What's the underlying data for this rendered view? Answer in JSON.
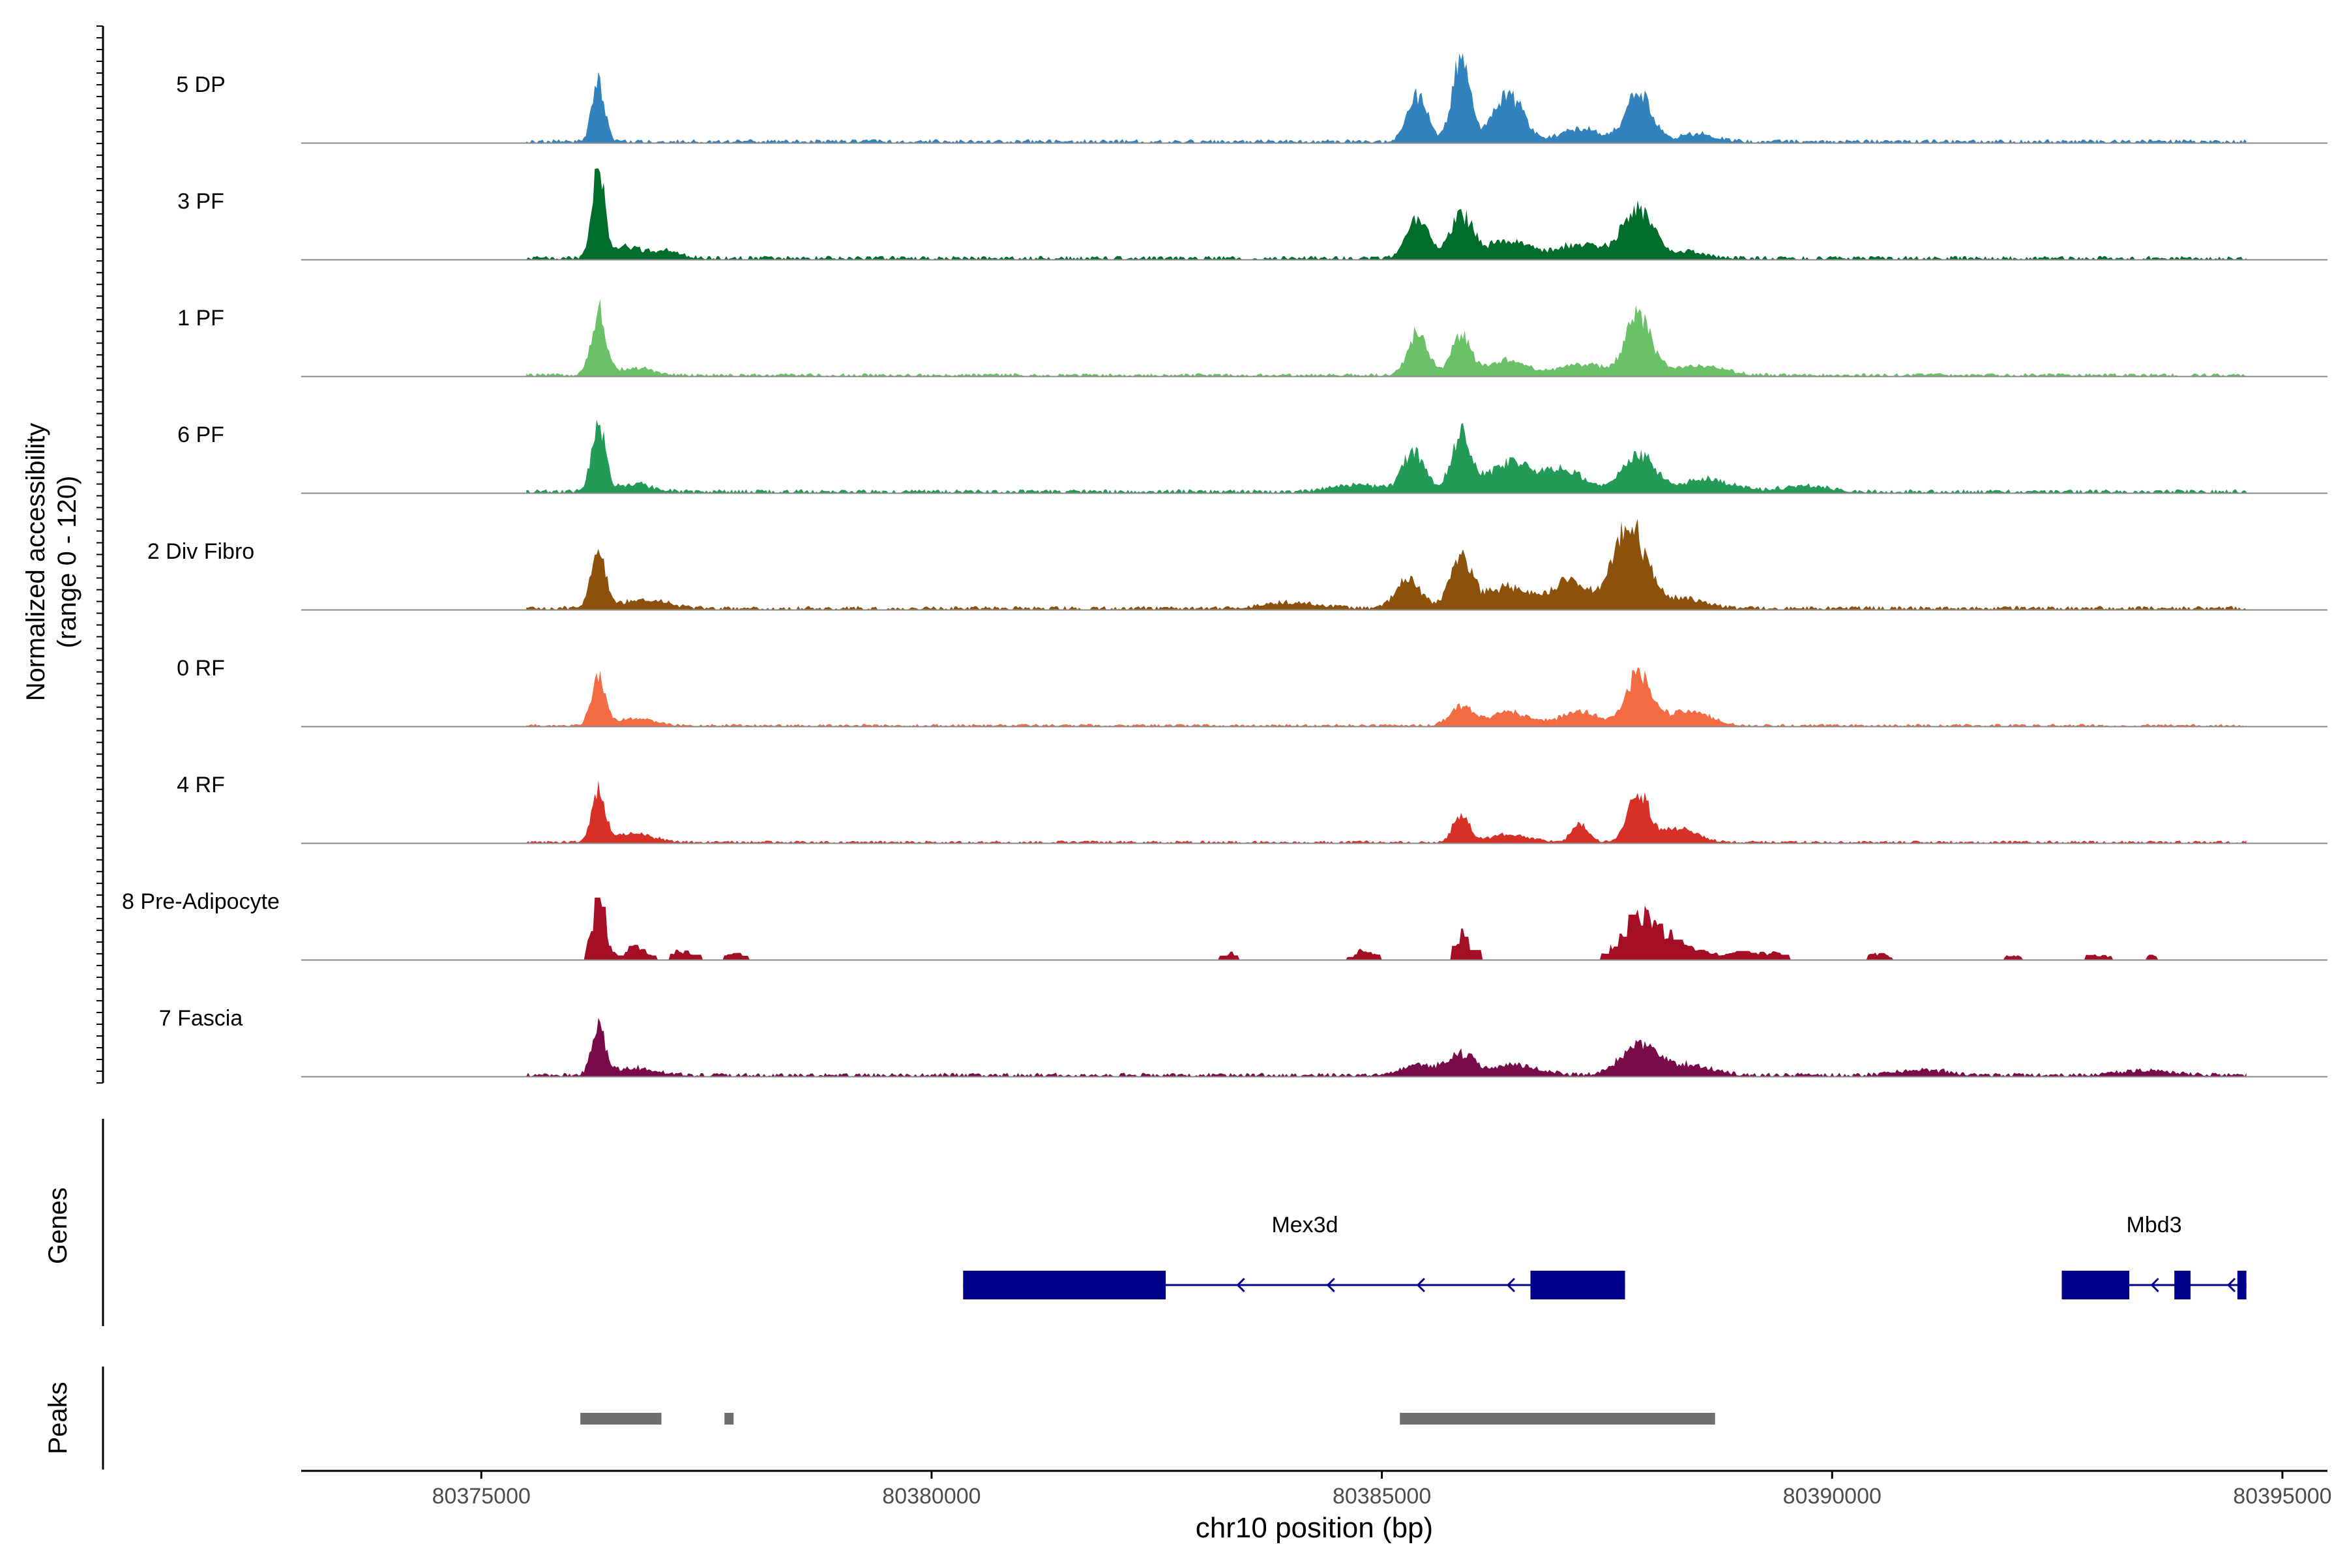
{
  "chart_data": {
    "type": "area",
    "title": "",
    "ylabel_line1": "Normalized accessibility",
    "ylabel_line2": "(range 0 - 120)",
    "ylim": [
      0,
      120
    ],
    "xlabel": "chr10 position (bp)",
    "xlim": [
      80373000,
      80395500
    ],
    "x_ticks": [
      80375000,
      80380000,
      80385000,
      80390000,
      80395000
    ],
    "x_tick_labels": [
      "80375000",
      "80380000",
      "80385000",
      "80390000",
      "80395000"
    ],
    "track_range": [
      80375500,
      80394600
    ],
    "tracks": [
      {
        "name": "5 DP",
        "color": "#3182BD",
        "baseline": 3.0,
        "peaks": [
          [
            80376300,
            80,
            70
          ],
          [
            80385400,
            64,
            110
          ],
          [
            80385880,
            120,
            95
          ],
          [
            80386400,
            62,
            170
          ],
          [
            80387200,
            18,
            200
          ],
          [
            80387850,
            70,
            140
          ],
          [
            80388500,
            10,
            200
          ]
        ]
      },
      {
        "name": "3 PF",
        "color": "#006D2C",
        "baseline": 3.0,
        "peaks": [
          [
            80376300,
            120,
            70
          ],
          [
            80376600,
            14,
            150
          ],
          [
            80377000,
            10,
            180
          ],
          [
            80385400,
            56,
            120
          ],
          [
            80385880,
            58,
            120
          ],
          [
            80386400,
            25,
            230
          ],
          [
            80387200,
            18,
            260
          ],
          [
            80387850,
            68,
            170
          ],
          [
            80388400,
            8,
            200
          ]
        ]
      },
      {
        "name": "1 PF",
        "color": "#6BC167",
        "baseline": 2.5,
        "peaks": [
          [
            80376300,
            85,
            80
          ],
          [
            80376700,
            10,
            200
          ],
          [
            80385400,
            58,
            110
          ],
          [
            80385880,
            55,
            110
          ],
          [
            80386400,
            20,
            200
          ],
          [
            80387200,
            15,
            260
          ],
          [
            80387850,
            80,
            140
          ],
          [
            80388500,
            14,
            280
          ]
        ]
      },
      {
        "name": "6 PF",
        "color": "#239B56",
        "baseline": 3.0,
        "peaks": [
          [
            80376300,
            88,
            75
          ],
          [
            80376700,
            10,
            200
          ],
          [
            80384700,
            10,
            250
          ],
          [
            80385350,
            55,
            120
          ],
          [
            80385880,
            75,
            110
          ],
          [
            80386400,
            38,
            220
          ],
          [
            80387000,
            30,
            240
          ],
          [
            80387850,
            50,
            170
          ],
          [
            80388600,
            16,
            300
          ],
          [
            80389700,
            8,
            250
          ]
        ]
      },
      {
        "name": "2 Div Fibro",
        "color": "#8C510A",
        "baseline": 3.0,
        "peaks": [
          [
            80376300,
            85,
            75
          ],
          [
            80376800,
            12,
            250
          ],
          [
            80384000,
            8,
            300
          ],
          [
            80385300,
            38,
            140
          ],
          [
            80385880,
            68,
            120
          ],
          [
            80386400,
            30,
            230
          ],
          [
            80387100,
            38,
            200
          ],
          [
            80387750,
            110,
            180
          ],
          [
            80388300,
            14,
            250
          ]
        ]
      },
      {
        "name": "0 RF",
        "color": "#F26B43",
        "baseline": 2.0,
        "peaks": [
          [
            80376300,
            68,
            75
          ],
          [
            80376700,
            10,
            200
          ],
          [
            80385880,
            25,
            120
          ],
          [
            80386400,
            18,
            230
          ],
          [
            80387200,
            20,
            200
          ],
          [
            80387850,
            70,
            140
          ],
          [
            80388400,
            20,
            230
          ]
        ]
      },
      {
        "name": "4 RF",
        "color": "#D73027",
        "baseline": 2.0,
        "peaks": [
          [
            80376300,
            68,
            75
          ],
          [
            80376700,
            12,
            200
          ],
          [
            80385880,
            35,
            90
          ],
          [
            80386400,
            10,
            230
          ],
          [
            80387200,
            25,
            90
          ],
          [
            80387850,
            68,
            110
          ],
          [
            80388300,
            18,
            200
          ]
        ]
      },
      {
        "name": "8 Pre-Adipocyte",
        "color": "#A50F26",
        "baseline": 0.0,
        "peaks": [
          [
            80376300,
            80,
            75
          ],
          [
            80376700,
            18,
            120
          ],
          [
            80377200,
            12,
            120
          ],
          [
            80377800,
            10,
            100
          ],
          [
            80383300,
            10,
            80
          ],
          [
            80384800,
            14,
            120
          ],
          [
            80385880,
            35,
            90
          ],
          [
            80387850,
            60,
            200
          ],
          [
            80388300,
            25,
            200
          ],
          [
            80389000,
            14,
            200
          ],
          [
            80389400,
            8,
            80
          ],
          [
            80390500,
            8,
            120
          ],
          [
            80392000,
            6,
            120
          ],
          [
            80392900,
            6,
            200
          ],
          [
            80393500,
            6,
            120
          ]
        ]
      },
      {
        "name": "7 Fascia",
        "color": "#7A0B4A",
        "baseline": 3.0,
        "peaks": [
          [
            80376300,
            70,
            70
          ],
          [
            80376700,
            10,
            250
          ],
          [
            80385400,
            14,
            200
          ],
          [
            80385880,
            28,
            150
          ],
          [
            80386500,
            14,
            250
          ],
          [
            80387850,
            40,
            200
          ],
          [
            80388400,
            14,
            250
          ],
          [
            80391000,
            8,
            250
          ],
          [
            80393500,
            6,
            300
          ]
        ]
      }
    ],
    "genes_label": "Genes",
    "genes": [
      {
        "name": "Mex3d",
        "start": 80380350,
        "end": 80387700,
        "strand": "-",
        "exons": [
          [
            80380350,
            80382600
          ],
          [
            80386650,
            80387700
          ]
        ],
        "arrows": [
          80383400,
          80384400,
          80385400,
          80386400
        ]
      },
      {
        "name": "Mbd3",
        "start": 80392550,
        "end": 80394600,
        "strand": "-",
        "exons": [
          [
            80392550,
            80393300
          ],
          [
            80393800,
            80393980
          ],
          [
            80394500,
            80394600
          ]
        ],
        "arrows": [
          80393550,
          80394400
        ]
      }
    ],
    "peaks_label": "Peaks",
    "peak_regions": [
      [
        80376100,
        80377000
      ],
      [
        80377700,
        80377800
      ],
      [
        80385200,
        80388700
      ]
    ]
  }
}
